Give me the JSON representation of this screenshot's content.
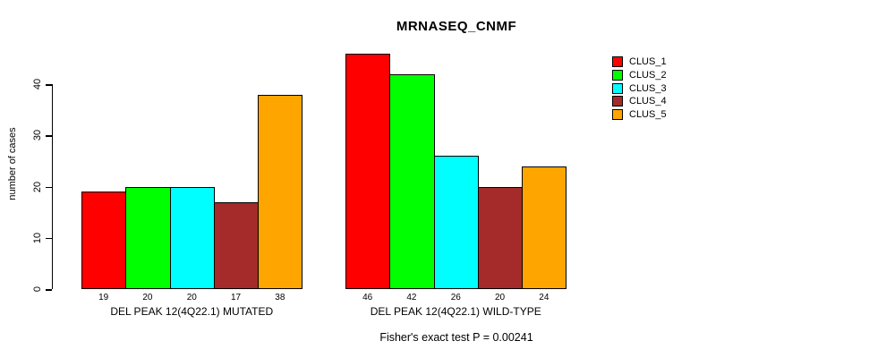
{
  "chart": {
    "title": "MRNASEQ_CNMF",
    "ylabel": "number of cases",
    "footer": "Fisher's exact test P = 0.00241"
  },
  "chart_data": {
    "type": "bar",
    "title": "MRNASEQ_CNMF",
    "xlabel": "",
    "ylabel": "number of cases",
    "ylim": [
      0,
      46
    ],
    "yticks": [
      0,
      10,
      20,
      30,
      40
    ],
    "grid": false,
    "legend_position": "right",
    "bar_value_labels_shown": true,
    "categories": [
      "DEL PEAK 12(4Q22.1) MUTATED",
      "DEL PEAK 12(4Q22.1) WILD-TYPE"
    ],
    "series": [
      {
        "name": "CLUS_1",
        "color": "#ff0000",
        "values": [
          19,
          46
        ]
      },
      {
        "name": "CLUS_2",
        "color": "#00ff00",
        "values": [
          20,
          42
        ]
      },
      {
        "name": "CLUS_3",
        "color": "#00ffff",
        "values": [
          20,
          26
        ]
      },
      {
        "name": "CLUS_4",
        "color": "#a52a2a",
        "values": [
          17,
          20
        ]
      },
      {
        "name": "CLUS_5",
        "color": "#ffa500",
        "values": [
          38,
          24
        ]
      }
    ],
    "annotation": "Fisher's exact test P = 0.00241"
  }
}
